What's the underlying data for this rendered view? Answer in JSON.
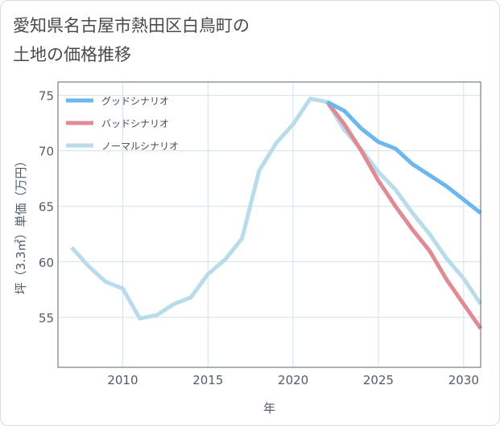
{
  "title": {
    "line1": "愛知県名古屋市熱田区白鳥町の",
    "line2": "土地の価格推移"
  },
  "colors": {
    "good": "#6cb8ee",
    "bad": "#e08a96",
    "normal": "#b8dcea",
    "grid": "#d3e1ea",
    "axis_text": "#4f5d6b",
    "plot_border": "#5a6470"
  },
  "chart_data": {
    "type": "line",
    "xlabel": "年",
    "ylabel": "坪（3.3㎡）単価（万円）",
    "xlim": [
      2006.2,
      2031
    ],
    "ylim": [
      50.5,
      76.2
    ],
    "xticks": [
      2010,
      2015,
      2020,
      2025,
      2030
    ],
    "yticks": [
      55,
      60,
      65,
      70,
      75
    ],
    "legend_position": "top-left",
    "grid": true,
    "series": [
      {
        "name": "グッドシナリオ",
        "key": "good",
        "x": [
          2022,
          2023,
          2024,
          2025,
          2026,
          2027,
          2028,
          2029,
          2030,
          2031
        ],
        "y": [
          74.4,
          73.6,
          72.0,
          70.8,
          70.2,
          68.8,
          67.8,
          66.8,
          65.6,
          64.4
        ]
      },
      {
        "name": "バッドシナリオ",
        "key": "bad",
        "x": [
          2022,
          2023,
          2024,
          2025,
          2026,
          2027,
          2028,
          2029,
          2030,
          2031
        ],
        "y": [
          74.4,
          72.4,
          70.0,
          67.3,
          65.0,
          62.9,
          61.0,
          58.4,
          56.2,
          54.0
        ]
      },
      {
        "name": "ノーマルシナリオ",
        "key": "normal",
        "x": [
          2007,
          2008,
          2009,
          2010,
          2011,
          2012,
          2013,
          2014,
          2015,
          2016,
          2017,
          2018,
          2019,
          2020,
          2021,
          2022,
          2023,
          2024,
          2025,
          2026,
          2027,
          2028,
          2029,
          2030,
          2031
        ],
        "y": [
          61.3,
          59.6,
          58.2,
          57.6,
          54.9,
          55.2,
          56.2,
          56.8,
          58.9,
          60.2,
          62.1,
          68.2,
          70.7,
          72.4,
          74.7,
          74.4,
          71.9,
          70.1,
          68.1,
          66.5,
          64.4,
          62.5,
          60.3,
          58.5,
          56.2
        ]
      }
    ]
  }
}
